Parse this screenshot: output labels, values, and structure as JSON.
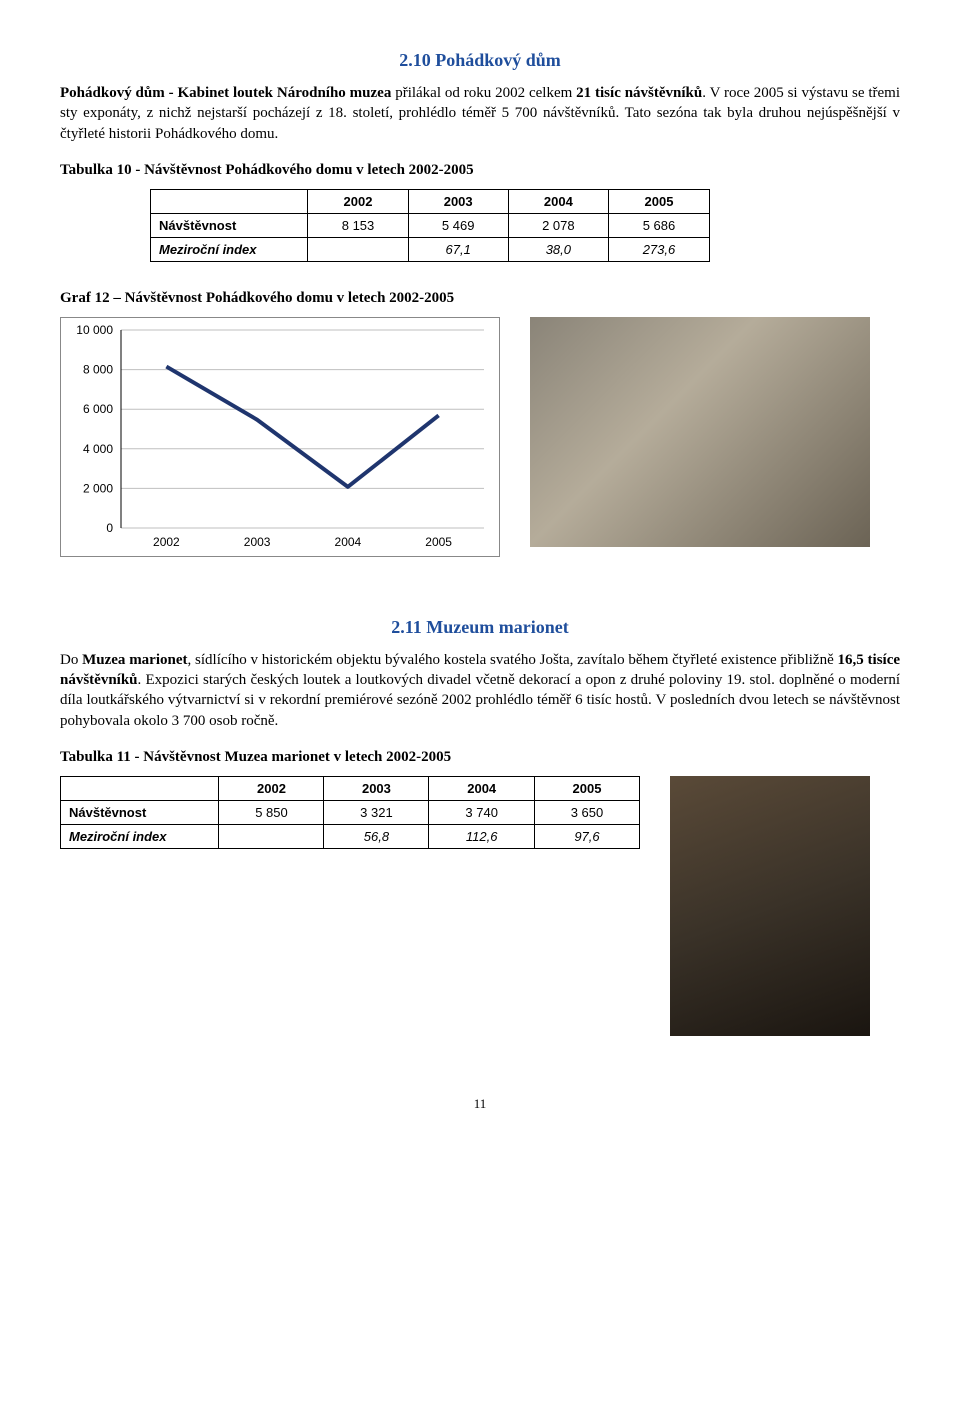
{
  "section1": {
    "title": "2.10 Pohádkový dům",
    "paragraph": "Pohádkový dům - Kabinet loutek Národního muzea přilákal od roku 2002 celkem 21 tisíc návštěvníků. V roce 2005 si výstavu se třemi sty exponáty, z nichž nejstarší pocházejí z 18. století, prohlédlo téměř 5 700 návštěvníků. Tato sezóna tak byla druhou nejúspěšnější v čtyřleté historii Pohádkového domu."
  },
  "table10": {
    "title": "Tabulka 10 - Návštěvnost Pohádkového domu v letech 2002-2005",
    "headers": [
      "",
      "2002",
      "2003",
      "2004",
      "2005"
    ],
    "rows": [
      {
        "label": "Návštěvnost",
        "values": [
          "8 153",
          "5 469",
          "2 078",
          "5 686"
        ],
        "italic": false
      },
      {
        "label": "Meziroční index",
        "values": [
          "",
          "67,1",
          "38,0",
          "273,6"
        ],
        "italic": true
      }
    ]
  },
  "chart12": {
    "title": "Graf 12 – Návštěvnost Pohádkového domu v letech 2002-2005",
    "type": "line",
    "categories": [
      "2002",
      "2003",
      "2004",
      "2005"
    ],
    "values": [
      8153,
      5469,
      2078,
      5686
    ],
    "line_color": "#1f356e",
    "line_width": 4,
    "ylim": [
      0,
      10000
    ],
    "ytick_step": 2000,
    "yticks": [
      "0",
      "2 000",
      "4 000",
      "6 000",
      "8 000",
      "10 000"
    ],
    "background_color": "#ffffff",
    "grid_color": "#bfbfbf",
    "axis_fontsize": 12,
    "plot_border_color": "#888888"
  },
  "section2": {
    "title": "2.11 Muzeum marionet",
    "paragraph": "Do Muzea marionet, sídlícího v historickém objektu bývalého kostela svatého Jošta, zavítalo během čtyřleté existence přibližně 16,5 tisíce návštěvníků. Expozici starých českých loutek a loutkových divadel včetně dekorací a opon z druhé poloviny 19. stol. doplněné o moderní díla loutkářského výtvarnictví si v rekordní premiérové sezóně 2002 prohlédlo téměř 6 tisíc hostů. V posledních dvou letech se návštěvnost pohybovala okolo 3 700 osob ročně."
  },
  "table11": {
    "title": "Tabulka 11 - Návštěvnost Muzea marionet v letech 2002-2005",
    "headers": [
      "",
      "2002",
      "2003",
      "2004",
      "2005"
    ],
    "rows": [
      {
        "label": "Návštěvnost",
        "values": [
          "5 850",
          "3 321",
          "3 740",
          "3 650"
        ],
        "italic": false
      },
      {
        "label": "Meziroční index",
        "values": [
          "",
          "56,8",
          "112,6",
          "97,6"
        ],
        "italic": true
      }
    ]
  },
  "page_num": "11"
}
